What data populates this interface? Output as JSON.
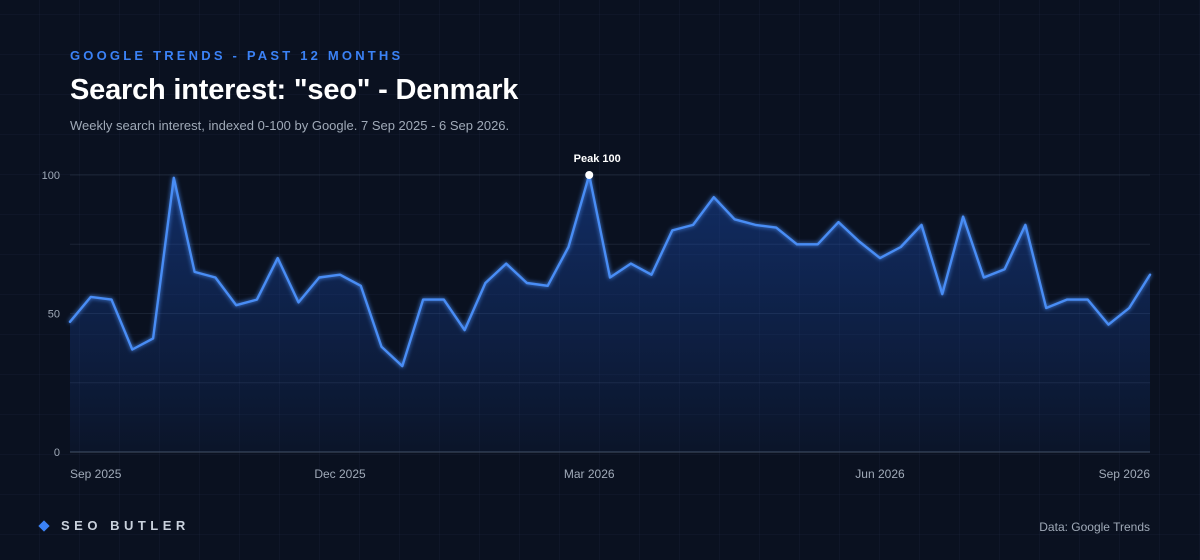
{
  "header": {
    "kicker": "GOOGLE TRENDS - PAST 12 MONTHS",
    "title": "Search interest: \"seo\" - Denmark",
    "subtitle": "Weekly search interest, indexed 0-100 by Google. 7 Sep 2025 - 6 Sep 2026."
  },
  "footer": {
    "brand": "SEO BUTLER",
    "source": "Data: Google Trends"
  },
  "colors": {
    "background": "#0a1120",
    "line": "#4a8df5",
    "accent": "#3b82f6"
  },
  "chart_data": {
    "type": "area",
    "title": "Search interest: \"seo\" - Denmark",
    "xlabel": "",
    "ylabel": "",
    "ylim": [
      0,
      100
    ],
    "yticks": [
      0,
      50,
      100
    ],
    "xtick_labels": [
      "Sep 2025",
      "Dec 2025",
      "Mar 2026",
      "Jun 2026",
      "Sep 2026"
    ],
    "xtick_weeks": [
      0,
      13,
      25,
      39,
      52
    ],
    "grid": true,
    "peak_label": "Peak 100",
    "peak_week": 25,
    "series": [
      {
        "values": [
          47,
          56,
          55,
          37,
          41,
          99,
          65,
          63,
          53,
          55,
          70,
          54,
          63,
          64,
          60,
          38,
          31,
          55,
          55,
          44,
          61,
          68,
          61,
          60,
          74,
          100,
          63,
          68,
          64,
          80,
          82,
          92,
          84,
          82,
          81,
          75,
          75,
          83,
          76,
          70,
          74,
          82,
          57,
          85,
          63,
          66,
          82,
          52,
          55,
          55,
          46,
          52,
          64
        ]
      }
    ]
  }
}
